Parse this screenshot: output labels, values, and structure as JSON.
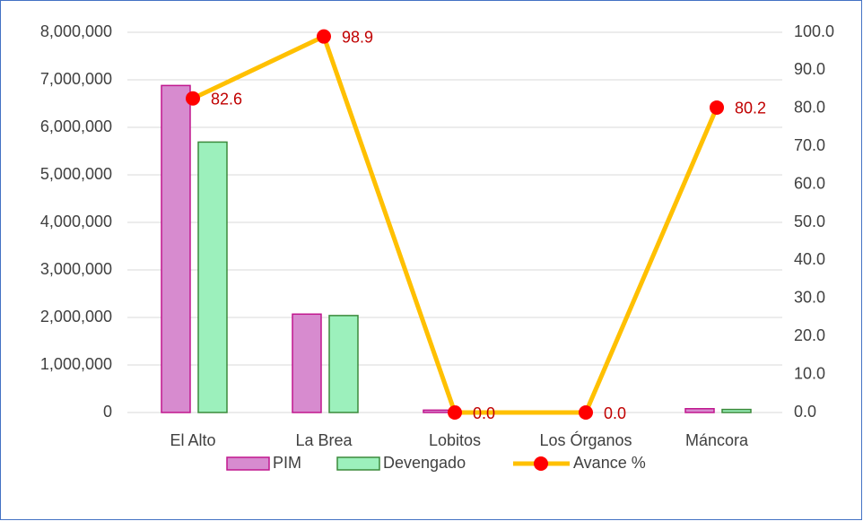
{
  "chart_data": {
    "type": "bar",
    "categories": [
      "El Alto",
      "La Brea",
      "Lobitos",
      "Los Órganos",
      "Máncora"
    ],
    "series": [
      {
        "name": "PIM",
        "color": "#d78bcf",
        "edge_color": "#c0168e",
        "values": [
          6880000,
          2070000,
          50000,
          0,
          80000
        ]
      },
      {
        "name": "Devengado",
        "color": "#9cf0bc",
        "edge_color": "#3b8a3b",
        "values": [
          5690000,
          2040000,
          0,
          0,
          64000
        ]
      },
      {
        "name": "Avance %",
        "type": "line",
        "axis": "y2",
        "color": "#ffc000",
        "marker_color": "#ff0000",
        "values": [
          82.6,
          98.9,
          0,
          0,
          80.2
        ],
        "value_labels": [
          "82.6",
          "98.9",
          "0.0",
          "0.0",
          "80.2"
        ]
      }
    ],
    "ylim": [
      0,
      8000000
    ],
    "yticks": [
      0,
      {
        "value": 1000000,
        "label": "1,000,000"
      },
      {
        "value": 2000000,
        "label": "2,000,000"
      },
      {
        "value": 3000000,
        "label": "3,000,000"
      },
      {
        "value": 4000000,
        "label": "4,000,000"
      },
      {
        "value": 5000000,
        "label": "5,000,000"
      },
      {
        "value": 6000000,
        "label": "6,000,000"
      },
      {
        "value": 7000000,
        "label": "7,000,000"
      },
      {
        "value": 8000000,
        "label": "8,000,000"
      }
    ],
    "y2lim": [
      0,
      100
    ],
    "y2ticks": [
      {
        "value": 0,
        "label": "0.0"
      },
      {
        "value": 10,
        "label": "10.0"
      },
      {
        "value": 20,
        "label": "20.0"
      },
      {
        "value": 30,
        "label": "30.0"
      },
      {
        "value": 40,
        "label": "40.0"
      },
      {
        "value": 50,
        "label": "50.0"
      },
      {
        "value": 60,
        "label": "60.0"
      },
      {
        "value": 70,
        "label": "70.0"
      },
      {
        "value": 80,
        "label": "80.0"
      },
      {
        "value": 90,
        "label": "90.0"
      },
      {
        "value": 100,
        "label": "100.0"
      }
    ],
    "grid": true,
    "legend": "bottom"
  }
}
